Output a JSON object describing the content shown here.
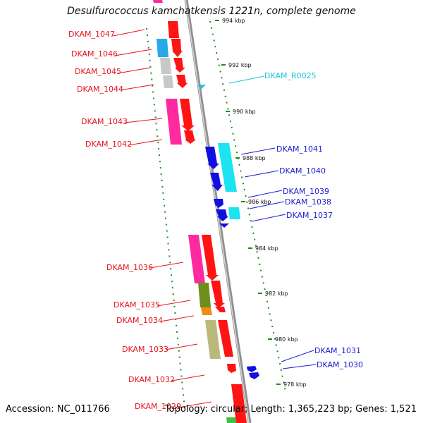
{
  "title": "Desulfurococcus kamchatkensis 1221n, complete genome",
  "footer": {
    "accession": "Accession: NC_011766",
    "info": "Topology: circular; Length: 1,365,223 bp; Genes: 1,521"
  },
  "colors": {
    "left_label": "#e8111c",
    "right_label": "#1a1ad2",
    "rna_label": "#19c4dc",
    "axis": "#8f8f8f",
    "tick": "#1f8a1f"
  },
  "ticks": [
    {
      "label": "994 kbp"
    },
    {
      "label": "992 kbp"
    },
    {
      "label": "990 kbp"
    },
    {
      "label": "988 kbp"
    },
    {
      "label": "986 kbp"
    },
    {
      "label": "984 kbp"
    },
    {
      "label": "982 kbp"
    },
    {
      "label": "980 kbp"
    },
    {
      "label": "978 kbp"
    }
  ],
  "genes": [
    {
      "label": "DKAM_1047",
      "side": "left"
    },
    {
      "label": "DKAM_1046",
      "side": "left"
    },
    {
      "label": "DKAM_1045",
      "side": "left"
    },
    {
      "label": "DKAM_1044",
      "side": "left"
    },
    {
      "label": "DKAM_1043",
      "side": "left"
    },
    {
      "label": "DKAM_1042",
      "side": "left"
    },
    {
      "label": "DKAM_R0025",
      "side": "right_rna"
    },
    {
      "label": "DKAM_1041",
      "side": "right"
    },
    {
      "label": "DKAM_1040",
      "side": "right"
    },
    {
      "label": "DKAM_1039",
      "side": "right"
    },
    {
      "label": "DKAM_1038",
      "side": "right"
    },
    {
      "label": "DKAM_1037",
      "side": "right"
    },
    {
      "label": "DKAM_1036",
      "side": "left"
    },
    {
      "label": "DKAM_1035",
      "side": "left"
    },
    {
      "label": "DKAM_1034",
      "side": "left"
    },
    {
      "label": "DKAM_1033",
      "side": "left"
    },
    {
      "label": "DKAM_1032",
      "side": "left"
    },
    {
      "label": "DKAM_1029",
      "side": "left"
    },
    {
      "label": "DKAM_1031",
      "side": "right"
    },
    {
      "label": "DKAM_1030",
      "side": "right"
    }
  ]
}
